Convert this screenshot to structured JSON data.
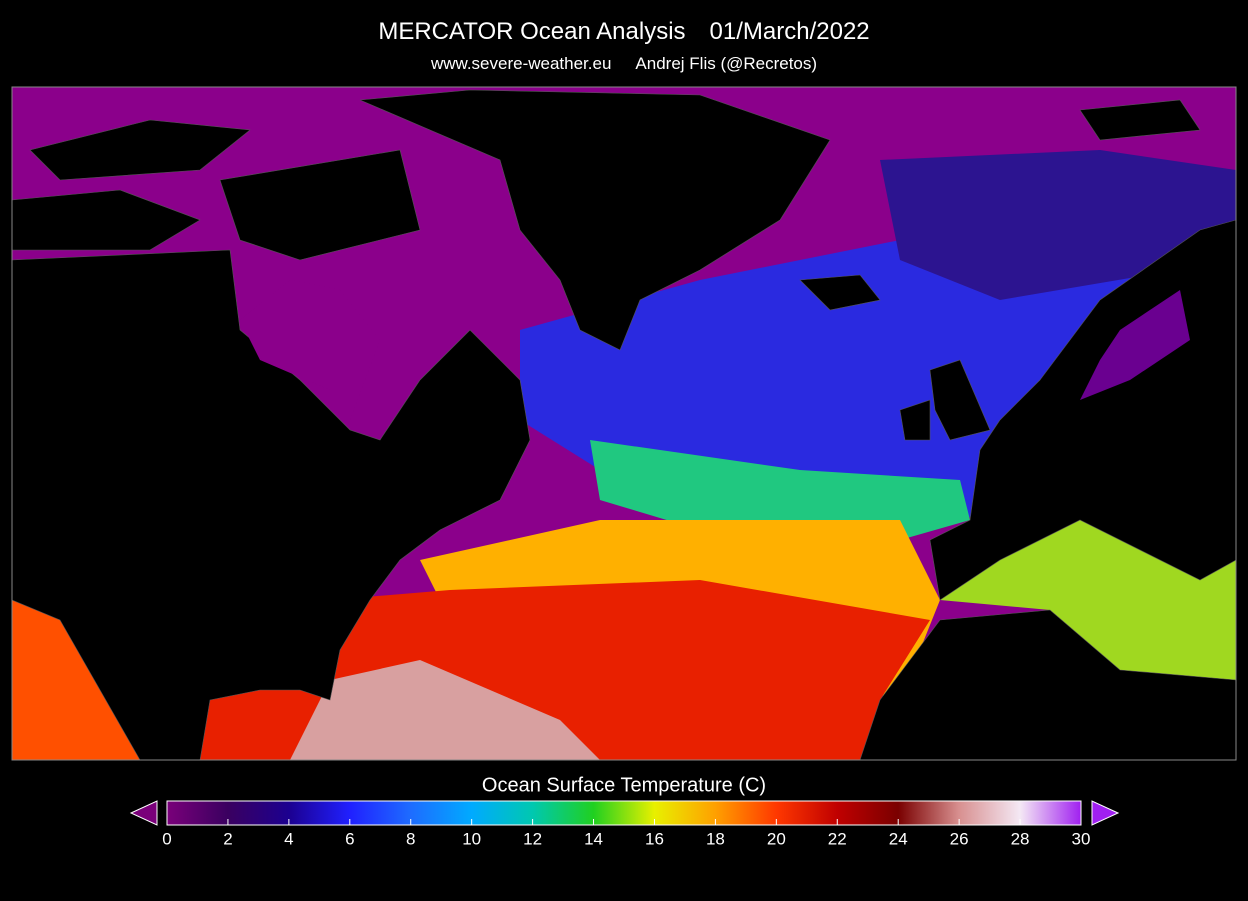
{
  "header": {
    "title": "MERCATOR Ocean Analysis",
    "date": "01/March/2022",
    "website": "www.severe-weather.eu",
    "author": "Andrej Flis (@Recretos)"
  },
  "colorbar": {
    "label": "Ocean Surface Temperature (C)",
    "range": [
      0,
      30
    ],
    "ticks": [
      0,
      2,
      4,
      6,
      8,
      10,
      12,
      14,
      16,
      18,
      20,
      22,
      24,
      26,
      28,
      30
    ],
    "colors": [
      "#7a007a",
      "#3a0060",
      "#1c0090",
      "#2020ff",
      "#1e6cff",
      "#00aaff",
      "#00c8b0",
      "#20d020",
      "#e8f000",
      "#ffa000",
      "#ff3800",
      "#c00000",
      "#7a0000",
      "#d89090",
      "#f4e8f4",
      "#a020f0"
    ]
  }
}
